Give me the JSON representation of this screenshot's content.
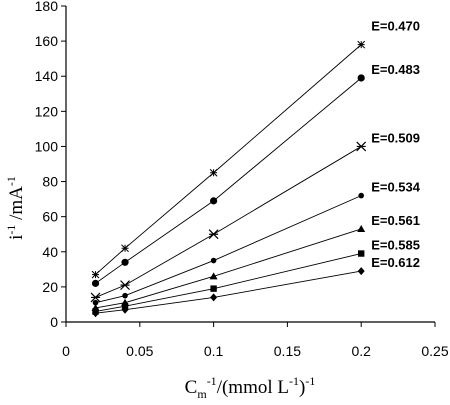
{
  "chart_data": {
    "type": "scatter",
    "title": "",
    "x": [
      0.02,
      0.04,
      0.1,
      0.2
    ],
    "xlim": [
      0,
      0.25
    ],
    "ylim": [
      0,
      180
    ],
    "xticks": [
      "0",
      "0.05",
      "0.1",
      "0.15",
      "0.2",
      "0.25"
    ],
    "yticks": [
      "0",
      "20",
      "40",
      "60",
      "80",
      "100",
      "120",
      "140",
      "160",
      "180"
    ],
    "xlabel": {
      "base": "C",
      "sub": "m",
      "sup1": "-1",
      "mid": "/(mmol L",
      "sup2": "-1",
      "end": ")",
      "sup3": "-1"
    },
    "ylabel": {
      "base": "i",
      "sup1": "-1",
      "mid": " /mA",
      "sup2": "-1"
    },
    "grid": false,
    "legend": "none",
    "series": [
      {
        "name": "E=0.470",
        "marker": "star",
        "values": [
          27,
          42,
          85,
          158
        ]
      },
      {
        "name": "E=0.483",
        "marker": "circle",
        "values": [
          22,
          34,
          69,
          139
        ]
      },
      {
        "name": "E=0.509",
        "marker": "x-star",
        "values": [
          14,
          21,
          50,
          100
        ]
      },
      {
        "name": "E=0.534",
        "marker": "dot",
        "values": [
          11,
          15,
          35,
          72
        ]
      },
      {
        "name": "E=0.561",
        "marker": "triangle",
        "values": [
          8,
          11,
          26,
          53
        ]
      },
      {
        "name": "E=0.585",
        "marker": "square",
        "values": [
          6,
          9,
          19,
          39
        ]
      },
      {
        "name": "E=0.612",
        "marker": "diamond",
        "values": [
          5,
          7,
          14,
          29
        ]
      }
    ]
  }
}
